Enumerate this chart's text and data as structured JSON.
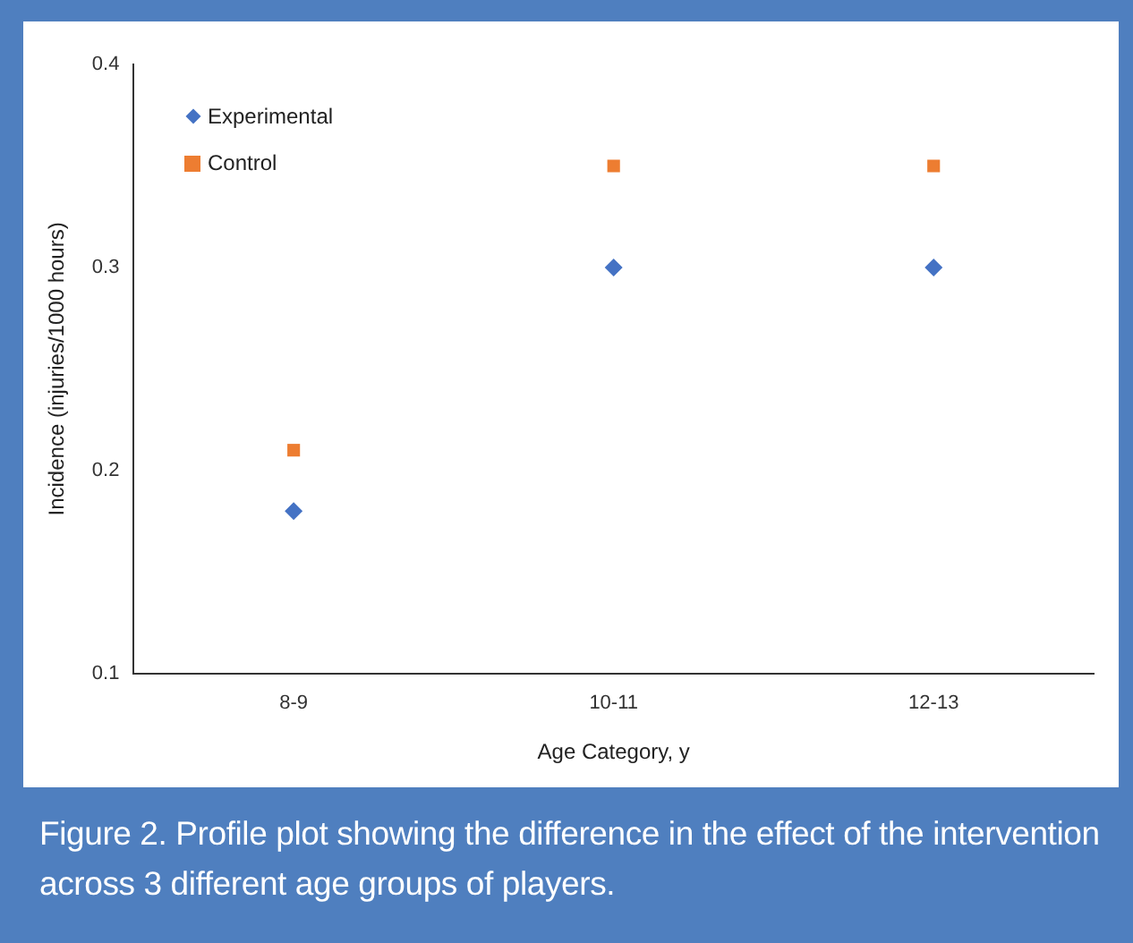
{
  "chart_data": {
    "type": "scatter",
    "xlabel": "Age Category, y",
    "ylabel": "Incidence (injuries/1000 hours)",
    "categories": [
      "8-9",
      "10-11",
      "12-13"
    ],
    "series": [
      {
        "name": "Experimental",
        "color": "#4472c4",
        "marker": "diamond",
        "values": [
          0.18,
          0.3,
          0.3
        ]
      },
      {
        "name": "Control",
        "color": "#ed7d31",
        "marker": "square",
        "values": [
          0.21,
          0.35,
          0.35
        ]
      }
    ],
    "ylim": [
      0.1,
      0.4
    ],
    "yticks": [
      0.1,
      0.2,
      0.3,
      0.4
    ],
    "grid": false,
    "legend": "top left",
    "annotations": [
      "Figure 2.  Profile plot showing the difference in the effect of the intervention across 3 different age groups of players."
    ]
  }
}
